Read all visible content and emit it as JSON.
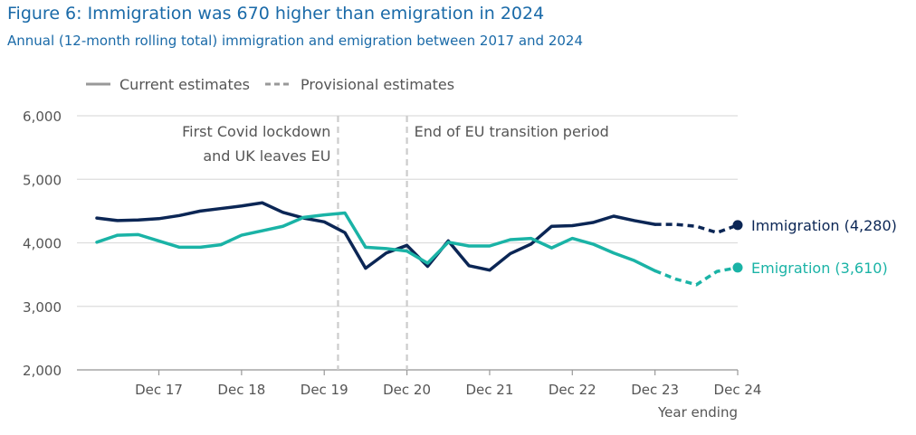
{
  "chart_data": {
    "type": "line",
    "title": "Figure 6: Immigration was 670 higher than emigration in 2024",
    "subtitle": "Annual (12-month rolling total) immigration and emigration between 2017 and 2024",
    "xlabel": "Year ending",
    "ylabel": "",
    "ylim": [
      2000,
      6000
    ],
    "yticks": [
      "2,000",
      "3,000",
      "4,000",
      "5,000",
      "6,000"
    ],
    "yticks_values": [
      2000,
      3000,
      4000,
      5000,
      6000
    ],
    "categories": [
      "Dec 17",
      "Dec 18",
      "Dec 19",
      "Dec 20",
      "Dec 21",
      "Dec 22",
      "Dec 23",
      "Dec 24"
    ],
    "legend": {
      "placement": "top-left",
      "items": [
        {
          "label": "Current estimates",
          "style": "solid"
        },
        {
          "label": "Provisional estimates",
          "style": "dashed"
        }
      ]
    },
    "x": [
      "Mar 17",
      "Jun 17",
      "Sep 17",
      "Dec 17",
      "Mar 18",
      "Jun 18",
      "Sep 18",
      "Dec 18",
      "Mar 19",
      "Jun 19",
      "Sep 19",
      "Dec 19",
      "Mar 20",
      "Jun 20",
      "Sep 20",
      "Dec 20",
      "Mar 21",
      "Jun 21",
      "Sep 21",
      "Dec 21",
      "Mar 22",
      "Jun 22",
      "Sep 22",
      "Dec 22",
      "Mar 23",
      "Jun 23",
      "Sep 23",
      "Dec 23",
      "Mar 24",
      "Jun 24",
      "Sep 24",
      "Dec 24"
    ],
    "provisional_from": "Dec 23",
    "series": [
      {
        "name": "Immigration",
        "end_label": "Immigration (4,280)",
        "color": "#0b2655",
        "values": [
          4390,
          4350,
          4360,
          4380,
          4430,
          4500,
          4540,
          4580,
          4630,
          4480,
          4390,
          4330,
          4160,
          3600,
          3840,
          3960,
          3630,
          4030,
          3640,
          3570,
          3830,
          3980,
          4260,
          4270,
          4320,
          4420,
          4350,
          4290,
          4290,
          4260,
          4160,
          4280
        ]
      },
      {
        "name": "Emigration",
        "end_label": "Emigration (3,610)",
        "color": "#1ab3a6",
        "values": [
          4010,
          4120,
          4130,
          4030,
          3930,
          3930,
          3970,
          4120,
          4190,
          4260,
          4400,
          4440,
          4470,
          3930,
          3910,
          3870,
          3680,
          4010,
          3950,
          3950,
          4050,
          4070,
          3920,
          4070,
          3980,
          3840,
          3720,
          3560,
          3430,
          3340,
          3550,
          3610
        ]
      }
    ],
    "annotations": [
      {
        "x": "Feb 20",
        "lines": [
          "First Covid lockdown",
          "and UK leaves EU"
        ]
      },
      {
        "x": "Dec 20",
        "lines": [
          "End of EU transition period"
        ]
      }
    ],
    "grid": "horizontal"
  }
}
